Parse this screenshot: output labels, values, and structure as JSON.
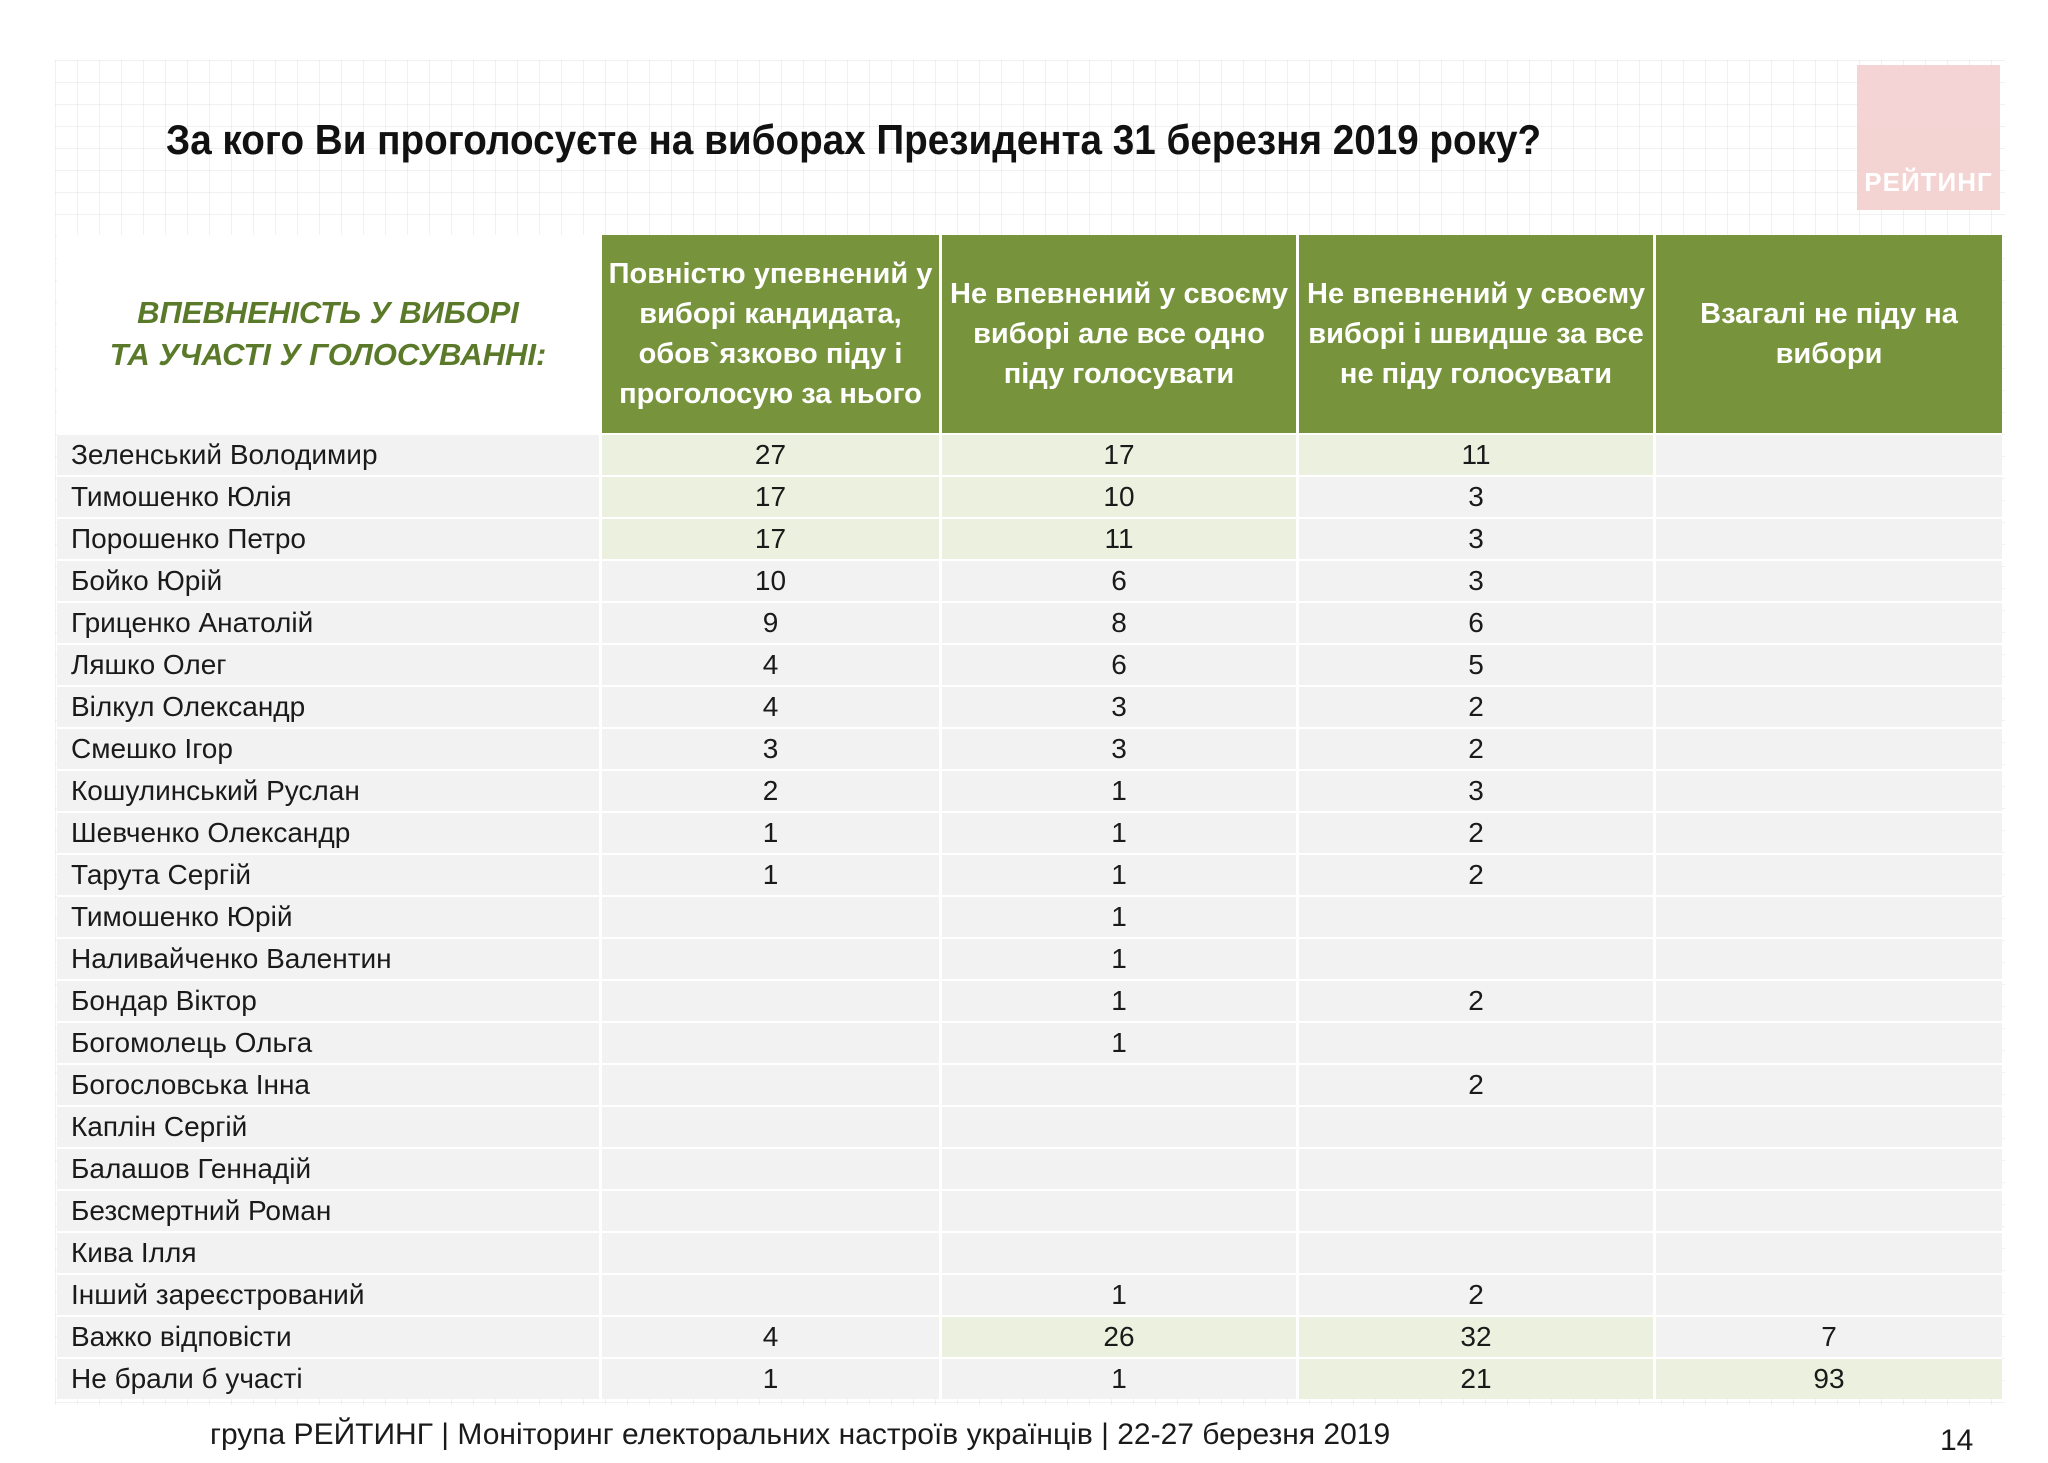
{
  "title": "За кого Ви проголосуєте на виборах Президента 31 березня 2019 року?",
  "logo_text": "РЕЙТИНГ",
  "table": {
    "row_header_label_line1": "ВПЕВНЕНІСТЬ У ВИБОРІ",
    "row_header_label_line2": "ТА УЧАСТІ У ГОЛОСУВАННІ:",
    "columns": [
      "Повністю упевнений у виборі кандидата, обов`язково піду і проголосую за нього",
      "Не впевнений у своєму виборі але все одно піду голосувати",
      "Не впевнений у своєму виборі і швидше за все не піду голосувати",
      "Взагалі не піду на вибори"
    ],
    "rows": [
      {
        "name": "Зеленський Володимир",
        "values": [
          "27",
          "17",
          "11",
          ""
        ],
        "highlight": [
          true,
          true,
          true,
          false
        ]
      },
      {
        "name": "Тимошенко Юлія",
        "values": [
          "17",
          "10",
          "3",
          ""
        ],
        "highlight": [
          true,
          true,
          false,
          false
        ]
      },
      {
        "name": "Порошенко Петро",
        "values": [
          "17",
          "11",
          "3",
          ""
        ],
        "highlight": [
          true,
          true,
          false,
          false
        ]
      },
      {
        "name": "Бойко Юрій",
        "values": [
          "10",
          "6",
          "3",
          ""
        ],
        "highlight": [
          false,
          false,
          false,
          false
        ]
      },
      {
        "name": "Гриценко Анатолій",
        "values": [
          "9",
          "8",
          "6",
          ""
        ],
        "highlight": [
          false,
          false,
          false,
          false
        ]
      },
      {
        "name": "Ляшко Олег",
        "values": [
          "4",
          "6",
          "5",
          ""
        ],
        "highlight": [
          false,
          false,
          false,
          false
        ]
      },
      {
        "name": "Вілкул Олександр",
        "values": [
          "4",
          "3",
          "2",
          ""
        ],
        "highlight": [
          false,
          false,
          false,
          false
        ]
      },
      {
        "name": "Смешко Ігор",
        "values": [
          "3",
          "3",
          "2",
          ""
        ],
        "highlight": [
          false,
          false,
          false,
          false
        ]
      },
      {
        "name": "Кошулинський Руслан",
        "values": [
          "2",
          "1",
          "3",
          ""
        ],
        "highlight": [
          false,
          false,
          false,
          false
        ]
      },
      {
        "name": "Шевченко Олександр",
        "values": [
          "1",
          "1",
          "2",
          ""
        ],
        "highlight": [
          false,
          false,
          false,
          false
        ]
      },
      {
        "name": "Тарута Сергій",
        "values": [
          "1",
          "1",
          "2",
          ""
        ],
        "highlight": [
          false,
          false,
          false,
          false
        ]
      },
      {
        "name": "Тимошенко Юрій",
        "values": [
          "",
          "1",
          "",
          ""
        ],
        "highlight": [
          false,
          false,
          false,
          false
        ]
      },
      {
        "name": "Наливайченко Валентин",
        "values": [
          "",
          "1",
          "",
          ""
        ],
        "highlight": [
          false,
          false,
          false,
          false
        ]
      },
      {
        "name": "Бондар Віктор",
        "values": [
          "",
          "1",
          "2",
          ""
        ],
        "highlight": [
          false,
          false,
          false,
          false
        ]
      },
      {
        "name": "Богомолець Ольга",
        "values": [
          "",
          "1",
          "",
          ""
        ],
        "highlight": [
          false,
          false,
          false,
          false
        ]
      },
      {
        "name": "Богословська Інна",
        "values": [
          "",
          "",
          "2",
          ""
        ],
        "highlight": [
          false,
          false,
          false,
          false
        ]
      },
      {
        "name": "Каплін Сергій",
        "values": [
          "",
          "",
          "",
          ""
        ],
        "highlight": [
          false,
          false,
          false,
          false
        ]
      },
      {
        "name": "Балашов Геннадій",
        "values": [
          "",
          "",
          "",
          ""
        ],
        "highlight": [
          false,
          false,
          false,
          false
        ]
      },
      {
        "name": "Безсмертний Роман",
        "values": [
          "",
          "",
          "",
          ""
        ],
        "highlight": [
          false,
          false,
          false,
          false
        ]
      },
      {
        "name": "Кива Ілля",
        "values": [
          "",
          "",
          "",
          ""
        ],
        "highlight": [
          false,
          false,
          false,
          false
        ]
      },
      {
        "name": "Інший зареєстрований",
        "values": [
          "",
          "1",
          "2",
          ""
        ],
        "highlight": [
          false,
          false,
          false,
          false
        ]
      },
      {
        "name": "Важко відповісти",
        "values": [
          "4",
          "26",
          "32",
          "7"
        ],
        "highlight": [
          false,
          true,
          true,
          false
        ]
      },
      {
        "name": "Не брали б участі",
        "values": [
          "1",
          "1",
          "21",
          "93"
        ],
        "highlight": [
          false,
          false,
          true,
          true
        ]
      }
    ]
  },
  "footer": "група РЕЙТИНГ | Моніторинг електоральних настроїв українців  |  22-27 березня 2019",
  "page_number": "14",
  "colors": {
    "header_green": "#77933c",
    "label_green": "#5a7a2a",
    "highlight": "#ebf1de",
    "row_bg": "#f2f2f2",
    "logo_pink": "#f3cfcf"
  }
}
